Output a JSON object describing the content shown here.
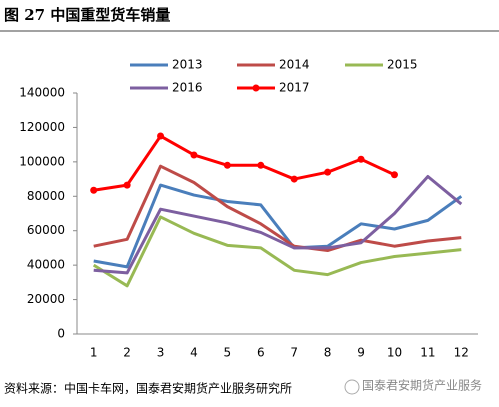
{
  "chart_data": {
    "type": "line",
    "title": "图 27 中国重型货车销量",
    "categories": [
      1,
      2,
      3,
      4,
      5,
      6,
      7,
      8,
      9,
      10,
      11,
      12
    ],
    "series": [
      {
        "name": "2013",
        "color": "#4a7ebb",
        "values": [
          42400,
          39000,
          86500,
          80700,
          77000,
          75000,
          50000,
          51000,
          64000,
          61000,
          66000,
          80000
        ]
      },
      {
        "name": "2014",
        "color": "#be4b48",
        "values": [
          51000,
          55000,
          97500,
          88000,
          74000,
          64000,
          51000,
          48500,
          54500,
          51000,
          54000,
          56000
        ]
      },
      {
        "name": "2015",
        "color": "#98b954",
        "values": [
          40000,
          28000,
          68000,
          58500,
          51500,
          50000,
          37000,
          34500,
          41500,
          45000,
          47000,
          49000
        ]
      },
      {
        "name": "2016",
        "color": "#7d5fa0",
        "values": [
          37000,
          35500,
          72500,
          68500,
          64500,
          59000,
          50000,
          50000,
          53000,
          70000,
          91500,
          75500
        ]
      },
      {
        "name": "2017",
        "color": "#ff0000",
        "markers": true,
        "values": [
          83500,
          86500,
          115000,
          104000,
          98000,
          98000,
          90000,
          94000,
          101500,
          92500,
          null,
          null
        ]
      }
    ],
    "ylim": [
      0,
      140000
    ],
    "yticks": [
      0,
      20000,
      40000,
      60000,
      80000,
      100000,
      120000,
      140000
    ],
    "grid": false,
    "source": "资料来源：中国卡车网，国泰君安期货产业服务研究所",
    "watermark": "国泰君安期货产业服务"
  }
}
